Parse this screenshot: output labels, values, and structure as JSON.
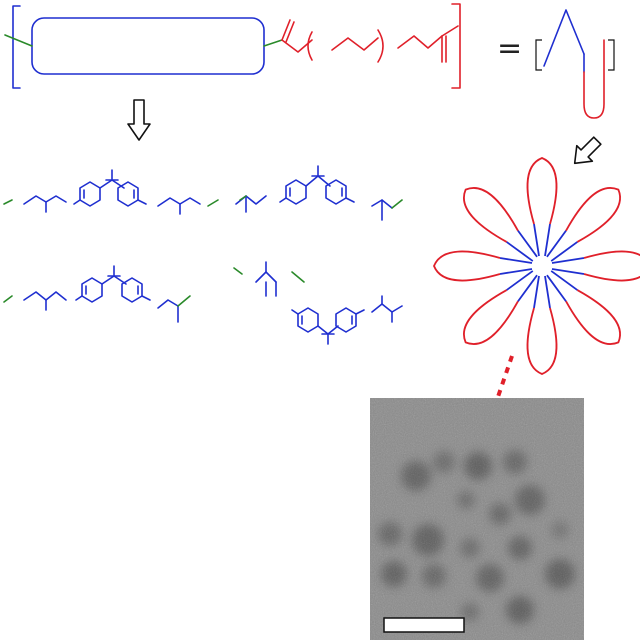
{
  "figure": {
    "equals_symbol": "=",
    "colors": {
      "block_a": "#1f2fd0",
      "block_b": "#e0202a",
      "end_group": "#2a8a2a",
      "arrow": "#111111",
      "micrograph_bg": "#8a8a8a",
      "scale_bar": "#ffffff"
    },
    "panels": [
      {
        "name": "block-copolymer-formula",
        "kind": "chemical-structure"
      },
      {
        "name": "chain-schematic",
        "kind": "schematic"
      },
      {
        "name": "product-structures",
        "kind": "chemical-structure",
        "count": 4
      },
      {
        "name": "flower-micelle",
        "kind": "schematic",
        "petals": 8
      },
      {
        "name": "tem-micrograph",
        "kind": "micrograph"
      }
    ],
    "icons": [
      "down-arrow-icon",
      "diagonal-arrow-icon",
      "dotted-arrow-icon",
      "scale-bar"
    ]
  }
}
